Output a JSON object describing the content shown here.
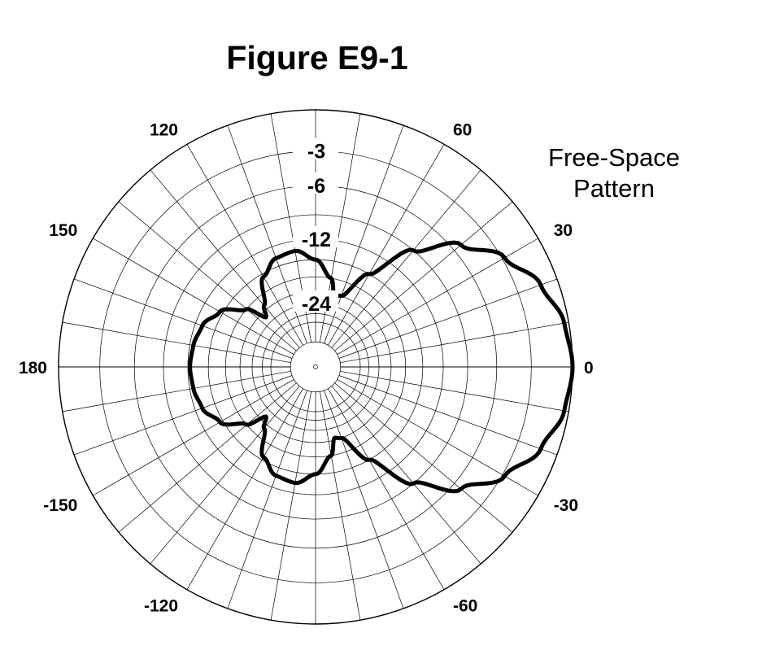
{
  "title": "Figure E9-1",
  "subtitle": {
    "line1": "Free-Space",
    "line2": "Pattern"
  },
  "chart_data": {
    "type": "polar",
    "title": "Figure E9-1",
    "subtitle": "Free-Space Pattern",
    "angle_unit": "degrees",
    "angle_tick_labels": [
      "0",
      "30",
      "60",
      "120",
      "150",
      "180",
      "-150",
      "-120",
      "-60",
      "-30"
    ],
    "angle_ticks": [
      0,
      30,
      60,
      120,
      150,
      180,
      -150,
      -120,
      -60,
      -30
    ],
    "radial_tick_labels": [
      "-3",
      "-6",
      "-12",
      "-24"
    ],
    "radial_ticks_db": [
      -3,
      -6,
      -12,
      -24
    ],
    "radial_scale": "ARRL log-periodic",
    "radial_range_db": [
      -40,
      0
    ],
    "grid": true,
    "spoke_step_deg": 10,
    "series": [
      {
        "angles_deg": [
          0,
          10,
          20,
          30,
          40,
          50,
          60,
          70,
          75,
          80,
          90,
          100,
          110,
          120,
          130,
          135,
          140,
          150,
          160,
          170,
          180
        ],
        "gain_db": [
          0,
          -0.3,
          -1.2,
          -2.8,
          -5.2,
          -9,
          -15,
          -21,
          -21.5,
          -18,
          -15,
          -13.4,
          -13.7,
          -15.5,
          -20,
          -22.3,
          -18,
          -14.5,
          -13,
          -12.5,
          -12.3
        ],
        "symmetric": true,
        "color": "#000000"
      }
    ]
  }
}
